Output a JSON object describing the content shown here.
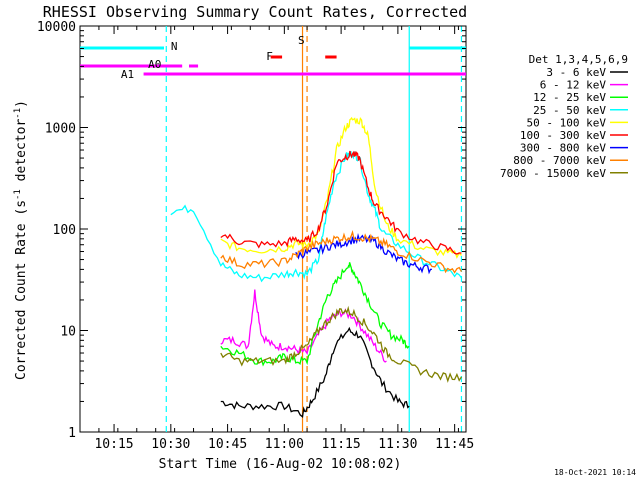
{
  "chart_data": {
    "type": "line",
    "title": "RHESSI Observing Summary Count Rates, Corrected",
    "xlabel": "Start Time (16-Aug-02 10:08:02)",
    "ylabel_main": "Corrected Count Rate (s",
    "ylabel_sup1": "-1",
    "ylabel_mid": " detector",
    "ylabel_sup2": "-1",
    "ylabel_end": ")",
    "yscale": "log",
    "ylim": [
      1,
      10000
    ],
    "xlim": [
      10.1,
      11.8
    ],
    "xticks": [
      {
        "t": 10.25,
        "label": "10:15"
      },
      {
        "t": 10.5,
        "label": "10:30"
      },
      {
        "t": 10.75,
        "label": "10:45"
      },
      {
        "t": 11.0,
        "label": "11:00"
      },
      {
        "t": 11.25,
        "label": "11:15"
      },
      {
        "t": 11.5,
        "label": "11:30"
      },
      {
        "t": 11.75,
        "label": "11:45"
      }
    ],
    "yticks": [
      {
        "v": 1,
        "label": "1"
      },
      {
        "v": 10,
        "label": "10"
      },
      {
        "v": 100,
        "label": "100"
      },
      {
        "v": 1000,
        "label": "1000"
      },
      {
        "v": 10000,
        "label": "10000"
      }
    ],
    "legend_header": "Det 1,3,4,5,6,9",
    "legend_placement": "right",
    "series": [
      {
        "name": "3 - 6 keV",
        "color": "#000000",
        "points": [
          [
            10.72,
            2
          ],
          [
            10.8,
            1.8
          ],
          [
            10.9,
            1.8
          ],
          [
            11.0,
            1.8
          ],
          [
            11.08,
            1.5
          ],
          [
            11.12,
            2
          ],
          [
            11.18,
            3.5
          ],
          [
            11.22,
            7
          ],
          [
            11.28,
            10
          ],
          [
            11.33,
            9
          ],
          [
            11.38,
            5
          ],
          [
            11.43,
            3
          ],
          [
            11.5,
            2
          ],
          [
            11.55,
            1.8
          ]
        ]
      },
      {
        "name": "6 - 12 keV",
        "color": "#ff00ff",
        "points": [
          [
            10.72,
            8
          ],
          [
            10.78,
            8
          ],
          [
            10.84,
            7
          ],
          [
            10.87,
            24
          ],
          [
            10.9,
            9
          ],
          [
            10.95,
            7
          ],
          [
            11.0,
            7
          ],
          [
            11.05,
            6.5
          ],
          [
            11.1,
            6
          ],
          [
            11.15,
            9
          ],
          [
            11.2,
            13
          ],
          [
            11.25,
            15
          ],
          [
            11.3,
            14
          ],
          [
            11.35,
            10
          ],
          [
            11.4,
            7
          ],
          [
            11.45,
            5
          ]
        ]
      },
      {
        "name": "12 - 25 keV",
        "color": "#00ff00",
        "points": [
          [
            10.72,
            7
          ],
          [
            10.8,
            6
          ],
          [
            10.88,
            5
          ],
          [
            10.95,
            5
          ],
          [
            11.0,
            5.5
          ],
          [
            11.05,
            5
          ],
          [
            11.1,
            5
          ],
          [
            11.15,
            12
          ],
          [
            11.19,
            22
          ],
          [
            11.23,
            30
          ],
          [
            11.28,
            45
          ],
          [
            11.3,
            40
          ],
          [
            11.33,
            30
          ],
          [
            11.37,
            20
          ],
          [
            11.42,
            12
          ],
          [
            11.47,
            9
          ],
          [
            11.52,
            8
          ],
          [
            11.55,
            7
          ]
        ]
      },
      {
        "name": "25 - 50 keV",
        "color": "#00ffff",
        "points": [
          [
            10.5,
            150
          ],
          [
            10.6,
            160
          ],
          [
            10.72,
            45
          ],
          [
            10.8,
            35
          ],
          [
            10.9,
            33
          ],
          [
            11.0,
            36
          ],
          [
            11.05,
            38
          ],
          [
            11.1,
            36
          ],
          [
            11.15,
            50
          ],
          [
            11.18,
            120
          ],
          [
            11.22,
            300
          ],
          [
            11.27,
            520
          ],
          [
            11.3,
            560
          ],
          [
            11.33,
            500
          ],
          [
            11.37,
            220
          ],
          [
            11.4,
            150
          ],
          [
            11.43,
            95
          ],
          [
            11.5,
            70
          ],
          [
            11.6,
            50
          ],
          [
            11.7,
            40
          ],
          [
            11.78,
            33
          ]
        ]
      },
      {
        "name": "50 - 100 keV",
        "color": "#ffff00",
        "points": [
          [
            10.72,
            75
          ],
          [
            10.8,
            65
          ],
          [
            10.9,
            62
          ],
          [
            11.0,
            65
          ],
          [
            11.05,
            72
          ],
          [
            11.1,
            70
          ],
          [
            11.15,
            90
          ],
          [
            11.19,
            200
          ],
          [
            11.23,
            600
          ],
          [
            11.27,
            1000
          ],
          [
            11.3,
            1200
          ],
          [
            11.34,
            1150
          ],
          [
            11.37,
            800
          ],
          [
            11.4,
            250
          ],
          [
            11.45,
            110
          ],
          [
            11.5,
            80
          ],
          [
            11.6,
            65
          ],
          [
            11.7,
            58
          ],
          [
            11.78,
            55
          ]
        ]
      },
      {
        "name": "100 - 300 keV",
        "color": "#ff0000",
        "points": [
          [
            10.72,
            90
          ],
          [
            10.8,
            75
          ],
          [
            10.9,
            70
          ],
          [
            11.0,
            72
          ],
          [
            11.05,
            80
          ],
          [
            11.1,
            75
          ],
          [
            11.15,
            100
          ],
          [
            11.19,
            180
          ],
          [
            11.23,
            450
          ],
          [
            11.27,
            520
          ],
          [
            11.3,
            550
          ],
          [
            11.33,
            500
          ],
          [
            11.37,
            250
          ],
          [
            11.4,
            170
          ],
          [
            11.45,
            130
          ],
          [
            11.5,
            95
          ],
          [
            11.6,
            75
          ],
          [
            11.7,
            65
          ],
          [
            11.78,
            58
          ]
        ]
      },
      {
        "name": "300 - 800 keV",
        "color": "#0000ff",
        "points": [
          [
            11.05,
            55
          ],
          [
            11.1,
            58
          ],
          [
            11.15,
            62
          ],
          [
            11.2,
            68
          ],
          [
            11.25,
            72
          ],
          [
            11.3,
            78
          ],
          [
            11.35,
            80
          ],
          [
            11.4,
            75
          ],
          [
            11.45,
            60
          ],
          [
            11.5,
            50
          ],
          [
            11.55,
            45
          ],
          [
            11.6,
            42
          ],
          [
            11.65,
            40
          ]
        ]
      },
      {
        "name": "800 - 7000 keV",
        "color": "#ff8000",
        "points": [
          [
            10.72,
            55
          ],
          [
            10.8,
            45
          ],
          [
            10.9,
            45
          ],
          [
            11.0,
            48
          ],
          [
            11.05,
            55
          ],
          [
            11.1,
            65
          ],
          [
            11.15,
            72
          ],
          [
            11.2,
            78
          ],
          [
            11.25,
            82
          ],
          [
            11.3,
            85
          ],
          [
            11.35,
            82
          ],
          [
            11.4,
            78
          ],
          [
            11.45,
            70
          ],
          [
            11.5,
            60
          ],
          [
            11.6,
            50
          ],
          [
            11.7,
            42
          ],
          [
            11.78,
            38
          ]
        ]
      },
      {
        "name": "7000 - 15000 keV",
        "color": "#808000",
        "points": [
          [
            10.72,
            6
          ],
          [
            10.8,
            5
          ],
          [
            10.9,
            5
          ],
          [
            11.0,
            5
          ],
          [
            11.05,
            6
          ],
          [
            11.1,
            7
          ],
          [
            11.15,
            10
          ],
          [
            11.2,
            13
          ],
          [
            11.25,
            16
          ],
          [
            11.3,
            15
          ],
          [
            11.35,
            12
          ],
          [
            11.4,
            9
          ],
          [
            11.45,
            6
          ],
          [
            11.5,
            5
          ],
          [
            11.6,
            4
          ],
          [
            11.7,
            3.5
          ],
          [
            11.78,
            3.5
          ]
        ]
      }
    ],
    "annotations": {
      "N_label": "N",
      "S_label": "S",
      "F_label": "F",
      "A0_label": "A0",
      "A1_label": "A1"
    },
    "event_lines": [
      {
        "t": 10.07,
        "color": "#00ffff",
        "style": "solid"
      },
      {
        "t": 10.48,
        "color": "#00ffff",
        "style": "dashed"
      },
      {
        "t": 11.08,
        "color": "#ff8000",
        "style": "solid"
      },
      {
        "t": 11.1,
        "color": "#ff8000",
        "style": "dashed"
      },
      {
        "t": 11.55,
        "color": "#00ffff",
        "style": "solid"
      },
      {
        "t": 11.78,
        "color": "#00ffff",
        "style": "dashed"
      }
    ],
    "footer_date": "18-Oct-2021 10:14"
  }
}
